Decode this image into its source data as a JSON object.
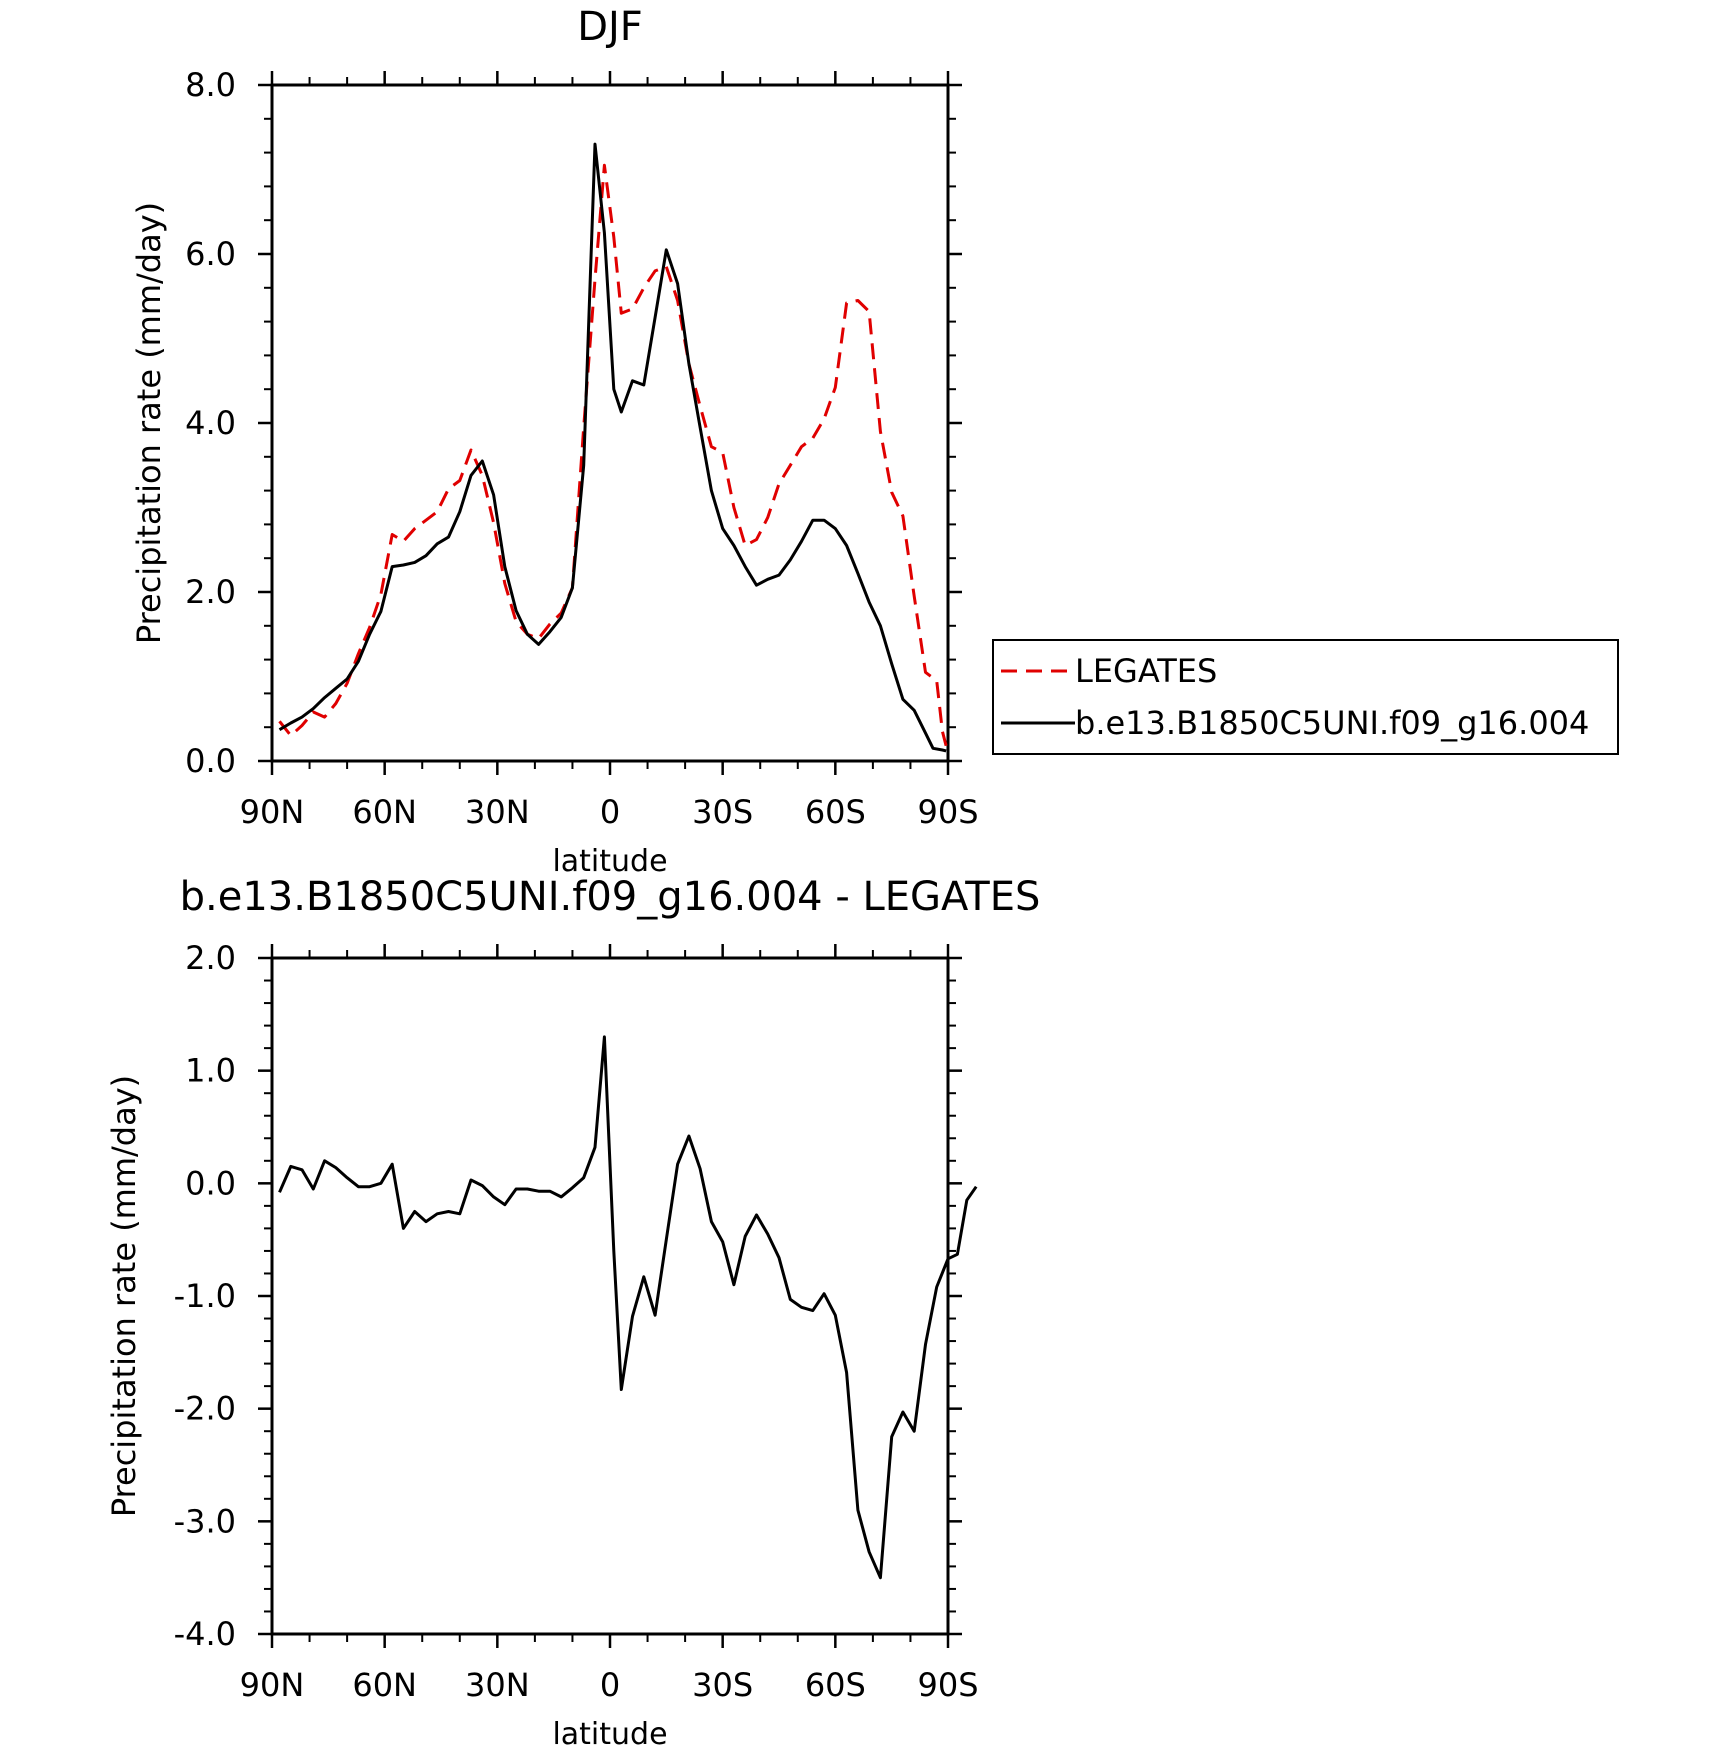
{
  "chart_data": [
    {
      "type": "line",
      "title": "DJF",
      "xlabel": "latitude",
      "ylabel": "Precipitation rate (mm/day)",
      "xlim": [
        90,
        -90
      ],
      "ylim": [
        0,
        8
      ],
      "x_ticks": [
        {
          "value": 90,
          "label": "90N"
        },
        {
          "value": 60,
          "label": "60N"
        },
        {
          "value": 30,
          "label": "30N"
        },
        {
          "value": 0,
          "label": "0"
        },
        {
          "value": -30,
          "label": "30S"
        },
        {
          "value": -60,
          "label": "60S"
        },
        {
          "value": -90,
          "label": "90S"
        }
      ],
      "y_ticks": [
        {
          "value": 0,
          "label": "0.0"
        },
        {
          "value": 2,
          "label": "2.0"
        },
        {
          "value": 4,
          "label": "4.0"
        },
        {
          "value": 6,
          "label": "6.0"
        },
        {
          "value": 8,
          "label": "8.0"
        }
      ],
      "legend_position": "right",
      "series": [
        {
          "name": "LEGATES",
          "color": "#e00000",
          "dash": "dashed",
          "points": [
            [
              88,
              0.47
            ],
            [
              85,
              0.3
            ],
            [
              82,
              0.42
            ],
            [
              79,
              0.58
            ],
            [
              76,
              0.52
            ],
            [
              73,
              0.68
            ],
            [
              70,
              0.92
            ],
            [
              67,
              1.27
            ],
            [
              64,
              1.58
            ],
            [
              61,
              1.97
            ],
            [
              58,
              2.68
            ],
            [
              55,
              2.6
            ],
            [
              52,
              2.75
            ],
            [
              49,
              2.85
            ],
            [
              46,
              2.95
            ],
            [
              43,
              3.22
            ],
            [
              40,
              3.32
            ],
            [
              37,
              3.68
            ],
            [
              34,
              3.38
            ],
            [
              31,
              2.82
            ],
            [
              28,
              2.1
            ],
            [
              25,
              1.65
            ],
            [
              22,
              1.5
            ],
            [
              19,
              1.45
            ],
            [
              16,
              1.62
            ],
            [
              13,
              1.75
            ],
            [
              10,
              2.05
            ],
            [
              7,
              3.95
            ],
            [
              4,
              5.7
            ],
            [
              1.5,
              7.05
            ],
            [
              -1,
              6.2
            ],
            [
              -3,
              5.3
            ],
            [
              -6,
              5.35
            ],
            [
              -9,
              5.6
            ],
            [
              -12,
              5.8
            ],
            [
              -15,
              5.85
            ],
            [
              -18,
              5.45
            ],
            [
              -21,
              4.7
            ],
            [
              -24,
              4.2
            ],
            [
              -27,
              3.72
            ],
            [
              -30,
              3.65
            ],
            [
              -33,
              3.0
            ],
            [
              -36,
              2.55
            ],
            [
              -39,
              2.62
            ],
            [
              -42,
              2.88
            ],
            [
              -45,
              3.28
            ],
            [
              -48,
              3.5
            ],
            [
              -51,
              3.72
            ],
            [
              -54,
              3.82
            ],
            [
              -57,
              4.05
            ],
            [
              -60,
              4.42
            ],
            [
              -63,
              5.42
            ],
            [
              -66,
              5.45
            ],
            [
              -69,
              5.32
            ],
            [
              -72,
              3.9
            ],
            [
              -75,
              3.18
            ],
            [
              -78,
              2.9
            ],
            [
              -81,
              1.95
            ],
            [
              -84,
              1.05
            ],
            [
              -87,
              0.95
            ],
            [
              -88.5,
              0.35
            ],
            [
              -89.5,
              0.18
            ]
          ]
        },
        {
          "name": "b.e13.B1850C5UNI.f09_g16.004",
          "color": "#000000",
          "dash": "solid",
          "points": [
            [
              88,
              0.37
            ],
            [
              85,
              0.45
            ],
            [
              82,
              0.52
            ],
            [
              79,
              0.62
            ],
            [
              76,
              0.75
            ],
            [
              73,
              0.86
            ],
            [
              70,
              0.97
            ],
            [
              67,
              1.18
            ],
            [
              64,
              1.5
            ],
            [
              61,
              1.77
            ],
            [
              58,
              2.3
            ],
            [
              55,
              2.32
            ],
            [
              52,
              2.35
            ],
            [
              49,
              2.43
            ],
            [
              46,
              2.57
            ],
            [
              43,
              2.65
            ],
            [
              40,
              2.95
            ],
            [
              37,
              3.38
            ],
            [
              34,
              3.55
            ],
            [
              31,
              3.15
            ],
            [
              28,
              2.3
            ],
            [
              25,
              1.78
            ],
            [
              22,
              1.5
            ],
            [
              19,
              1.38
            ],
            [
              16,
              1.53
            ],
            [
              13,
              1.7
            ],
            [
              10,
              2.05
            ],
            [
              7,
              3.5
            ],
            [
              4,
              7.3
            ],
            [
              1.5,
              6.25
            ],
            [
              -1,
              4.4
            ],
            [
              -3,
              4.13
            ],
            [
              -6,
              4.5
            ],
            [
              -9,
              4.45
            ],
            [
              -12,
              5.25
            ],
            [
              -15,
              6.05
            ],
            [
              -18,
              5.65
            ],
            [
              -21,
              4.7
            ],
            [
              -24,
              3.95
            ],
            [
              -27,
              3.2
            ],
            [
              -30,
              2.75
            ],
            [
              -33,
              2.55
            ],
            [
              -36,
              2.3
            ],
            [
              -39,
              2.08
            ],
            [
              -42,
              2.15
            ],
            [
              -45,
              2.2
            ],
            [
              -48,
              2.38
            ],
            [
              -51,
              2.6
            ],
            [
              -54,
              2.85
            ],
            [
              -57,
              2.85
            ],
            [
              -60,
              2.75
            ],
            [
              -63,
              2.55
            ],
            [
              -66,
              2.22
            ],
            [
              -69,
              1.88
            ],
            [
              -72,
              1.6
            ],
            [
              -75,
              1.15
            ],
            [
              -78,
              0.73
            ],
            [
              -81,
              0.6
            ],
            [
              -84,
              0.33
            ],
            [
              -86,
              0.15
            ],
            [
              -88.5,
              0.13
            ],
            [
              -89.5,
              0.12
            ]
          ]
        }
      ]
    },
    {
      "type": "line",
      "title": "b.e13.B1850C5UNI.f09_g16.004 - LEGATES",
      "xlabel": "latitude",
      "ylabel": "Precipitation rate (mm/day)",
      "xlim": [
        90,
        -90
      ],
      "ylim": [
        -4,
        2
      ],
      "x_ticks": [
        {
          "value": 90,
          "label": "90N"
        },
        {
          "value": 60,
          "label": "60N"
        },
        {
          "value": 30,
          "label": "30N"
        },
        {
          "value": 0,
          "label": "0"
        },
        {
          "value": -30,
          "label": "30S"
        },
        {
          "value": -60,
          "label": "60S"
        },
        {
          "value": -90,
          "label": "90S"
        }
      ],
      "y_ticks": [
        {
          "value": -4,
          "label": "-4.0"
        },
        {
          "value": -3,
          "label": "-3.0"
        },
        {
          "value": -2,
          "label": "-2.0"
        },
        {
          "value": -1,
          "label": "-1.0"
        },
        {
          "value": 0,
          "label": "0.0"
        },
        {
          "value": 1,
          "label": "1.0"
        },
        {
          "value": 2,
          "label": "2.0"
        }
      ],
      "series": [
        {
          "color": "#000000",
          "dash": "solid",
          "points": [
            [
              88,
              -0.08
            ],
            [
              85,
              0.15
            ],
            [
              82,
              0.12
            ],
            [
              79,
              -0.05
            ],
            [
              76,
              0.2
            ],
            [
              73,
              0.14
            ],
            [
              70,
              0.05
            ],
            [
              67,
              -0.03
            ],
            [
              64,
              -0.03
            ],
            [
              61,
              0.0
            ],
            [
              58,
              0.17
            ],
            [
              55,
              -0.4
            ],
            [
              52,
              -0.25
            ],
            [
              49,
              -0.34
            ],
            [
              46,
              -0.27
            ],
            [
              43,
              -0.25
            ],
            [
              40,
              -0.27
            ],
            [
              37,
              0.03
            ],
            [
              34,
              -0.02
            ],
            [
              31,
              -0.12
            ],
            [
              28,
              -0.19
            ],
            [
              25,
              -0.05
            ],
            [
              22,
              -0.05
            ],
            [
              19,
              -0.07
            ],
            [
              16,
              -0.07
            ],
            [
              13,
              -0.12
            ],
            [
              10,
              -0.04
            ],
            [
              7,
              0.05
            ],
            [
              4,
              0.32
            ],
            [
              1.5,
              1.3
            ],
            [
              -1,
              -0.6
            ],
            [
              -3,
              -1.83
            ],
            [
              -6,
              -1.18
            ],
            [
              -9,
              -0.83
            ],
            [
              -12,
              -1.17
            ],
            [
              -15,
              -0.5
            ],
            [
              -18,
              0.17
            ],
            [
              -21,
              0.42
            ],
            [
              -24,
              0.13
            ],
            [
              -27,
              -0.34
            ],
            [
              -30,
              -0.52
            ],
            [
              -33,
              -0.9
            ],
            [
              -36,
              -0.47
            ],
            [
              -39,
              -0.28
            ],
            [
              -42,
              -0.45
            ],
            [
              -45,
              -0.66
            ],
            [
              -48,
              -1.03
            ],
            [
              -51,
              -1.1
            ],
            [
              -54,
              -1.13
            ],
            [
              -57,
              -0.98
            ],
            [
              -60,
              -1.17
            ],
            [
              -63,
              -1.68
            ],
            [
              -66,
              -2.9
            ],
            [
              -69,
              -3.27
            ],
            [
              -72,
              -3.5
            ],
            [
              -75,
              -2.25
            ],
            [
              -78,
              -2.03
            ],
            [
              -81,
              -2.2
            ],
            [
              -84,
              -1.43
            ],
            [
              -87,
              -0.92
            ],
            [
              -90,
              -0.67
            ],
            [
              -92.5,
              -0.63
            ],
            [
              -95,
              -0.15
            ],
            [
              -97.5,
              -0.03
            ]
          ]
        }
      ]
    }
  ]
}
